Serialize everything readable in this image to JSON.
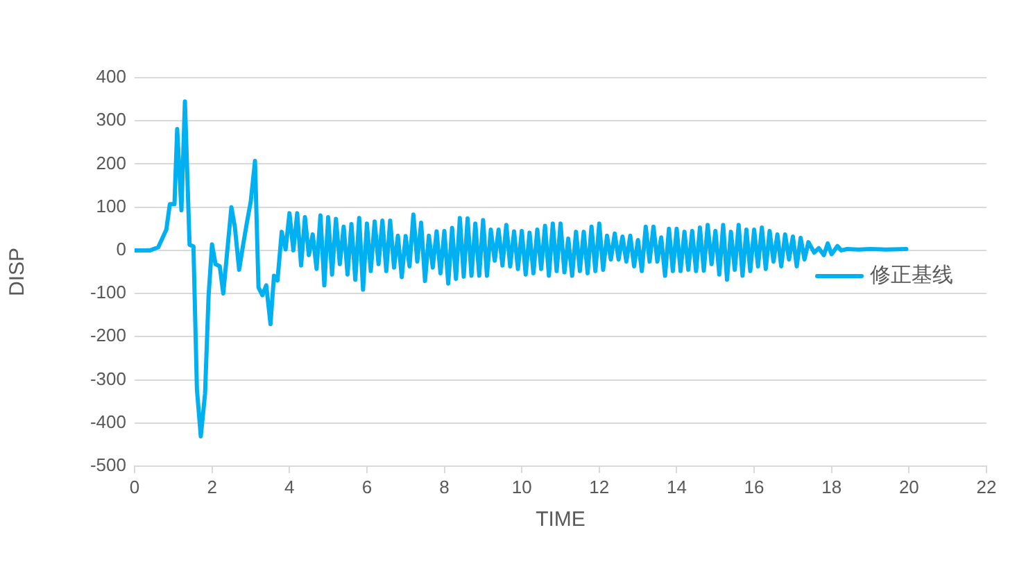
{
  "chart_data": {
    "type": "line",
    "xlabel": "TIME",
    "ylabel": "DISP",
    "x": [
      0,
      0.4,
      0.61,
      0.82,
      0.91,
      1.03,
      1.1,
      1.21,
      1.3,
      1.42,
      1.52,
      1.61,
      1.71,
      1.82,
      1.91,
      2.0,
      2.09,
      2.2,
      2.29,
      2.5,
      2.59,
      2.7,
      2.8,
      2.9,
      3.0,
      3.11,
      3.2,
      3.3,
      3.4,
      3.51,
      3.6,
      3.69,
      3.8,
      3.9,
      4.0,
      4.1,
      4.2,
      4.3,
      4.4,
      4.5,
      4.6,
      4.7,
      4.8,
      4.9,
      5.0,
      5.1,
      5.2,
      5.3,
      5.4,
      5.5,
      5.6,
      5.7,
      5.8,
      5.9,
      6.0,
      6.1,
      6.2,
      6.3,
      6.4,
      6.5,
      6.6,
      6.7,
      6.8,
      6.9,
      7.0,
      7.1,
      7.2,
      7.3,
      7.4,
      7.5,
      7.6,
      7.7,
      7.8,
      7.9,
      8.0,
      8.1,
      8.2,
      8.3,
      8.4,
      8.5,
      8.6,
      8.7,
      8.8,
      8.9,
      9.0,
      9.1,
      9.2,
      9.3,
      9.4,
      9.5,
      9.6,
      9.7,
      9.8,
      9.9,
      10.0,
      10.1,
      10.2,
      10.3,
      10.4,
      10.5,
      10.6,
      10.7,
      10.8,
      10.9,
      11.0,
      11.1,
      11.2,
      11.3,
      11.4,
      11.5,
      11.6,
      11.7,
      11.8,
      11.9,
      12.0,
      12.1,
      12.2,
      12.3,
      12.4,
      12.5,
      12.6,
      12.7,
      12.8,
      12.9,
      13.0,
      13.1,
      13.2,
      13.3,
      13.4,
      13.5,
      13.6,
      13.7,
      13.8,
      13.9,
      14.0,
      14.1,
      14.2,
      14.3,
      14.4,
      14.5,
      14.6,
      14.7,
      14.8,
      14.9,
      15.0,
      15.1,
      15.2,
      15.3,
      15.4,
      15.5,
      15.6,
      15.7,
      15.8,
      15.9,
      16.0,
      16.1,
      16.2,
      16.3,
      16.4,
      16.5,
      16.6,
      16.7,
      16.8,
      16.9,
      17.0,
      17.1,
      17.2,
      17.3,
      17.4,
      17.55,
      17.67,
      17.8,
      17.9,
      18.0,
      18.15,
      18.25,
      18.4,
      18.7,
      19.0,
      19.4,
      19.93
    ],
    "series": [
      {
        "name": "修正基线",
        "color": "#00b0f0",
        "values": [
          0,
          0,
          7,
          48,
          107,
          107,
          281,
          93,
          345,
          13,
          9,
          -322,
          -431,
          -332,
          -107,
          14,
          -32,
          -37,
          -100,
          100,
          54,
          -45,
          11,
          64,
          113,
          207,
          -86,
          -104,
          -81,
          -171,
          -59,
          -70,
          43,
          2,
          86,
          0,
          86,
          -35,
          77,
          -11,
          37,
          -43,
          81,
          -81,
          77,
          -56,
          73,
          -32,
          55,
          -56,
          61,
          -68,
          75,
          -91,
          62,
          -48,
          67,
          -32,
          69,
          -48,
          69,
          -40,
          34,
          -62,
          33,
          -37,
          83,
          -26,
          64,
          -71,
          34,
          -40,
          44,
          -53,
          45,
          -77,
          52,
          -66,
          75,
          -61,
          74,
          -59,
          62,
          -59,
          70,
          -59,
          48,
          -24,
          48,
          -35,
          59,
          -37,
          44,
          -43,
          45,
          -56,
          41,
          -53,
          48,
          -43,
          57,
          -59,
          62,
          -48,
          62,
          -51,
          27,
          -59,
          43,
          -48,
          43,
          -53,
          55,
          -48,
          62,
          -45,
          34,
          -21,
          39,
          -21,
          32,
          -26,
          34,
          -37,
          24,
          -48,
          55,
          -26,
          55,
          -26,
          30,
          -59,
          50,
          -48,
          50,
          -48,
          43,
          -45,
          45,
          -48,
          53,
          -47,
          59,
          -32,
          45,
          -56,
          59,
          -68,
          43,
          -45,
          59,
          -59,
          48,
          -48,
          48,
          -37,
          53,
          -43,
          45,
          -26,
          37,
          -37,
          37,
          -21,
          32,
          -37,
          29,
          -21,
          19,
          -5,
          5,
          -11,
          16,
          -9,
          10,
          0,
          3,
          2,
          3,
          2,
          3
        ]
      }
    ],
    "xlim": [
      0,
      22
    ],
    "xticks": [
      0,
      2,
      4,
      6,
      8,
      10,
      12,
      14,
      16,
      18,
      20,
      22
    ],
    "ylim": [
      -500,
      400
    ],
    "yticks": [
      -500,
      -400,
      -300,
      -200,
      -100,
      0,
      100,
      200,
      300,
      400
    ],
    "grid": "y",
    "legend": "right",
    "marker": "none",
    "line_style": "solid"
  }
}
